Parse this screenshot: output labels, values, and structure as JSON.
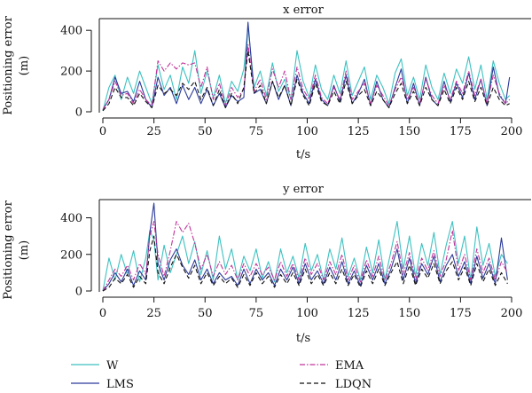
{
  "figure": {
    "ylabel_line1": "Positioning error",
    "ylabel_line2": "(m)"
  },
  "colors": {
    "W": "#3ec1c1",
    "LMS": "#2b3a9a",
    "EMA": "#c0349a",
    "LDQN": "#111111"
  },
  "chart_data": [
    {
      "type": "line",
      "title": "x error",
      "xlabel": "t/s",
      "ylabel": "Positioning error (m)",
      "xlim": [
        0,
        200
      ],
      "ylim": [
        0,
        440
      ],
      "x_ticks": [
        0,
        25,
        50,
        75,
        100,
        125,
        150,
        175,
        200
      ],
      "y_ticks": [
        0,
        200,
        400
      ],
      "x": [
        0,
        3,
        6,
        9,
        12,
        15,
        18,
        21,
        24,
        27,
        30,
        33,
        36,
        39,
        42,
        45,
        48,
        51,
        54,
        57,
        60,
        63,
        66,
        69,
        71,
        74,
        77,
        80,
        83,
        86,
        89,
        92,
        95,
        98,
        101,
        104,
        107,
        110,
        113,
        116,
        119,
        122,
        125,
        128,
        131,
        134,
        137,
        140,
        143,
        146,
        149,
        152,
        155,
        158,
        161,
        164,
        167,
        170,
        173,
        176,
        179,
        182,
        185,
        188,
        191,
        194,
        197,
        199
      ],
      "series": [
        {
          "name": "W",
          "values": [
            5,
            120,
            180,
            60,
            170,
            90,
            200,
            120,
            40,
            230,
            110,
            180,
            60,
            220,
            140,
            300,
            90,
            200,
            70,
            180,
            40,
            150,
            100,
            210,
            420,
            120,
            200,
            80,
            240,
            100,
            160,
            60,
            300,
            150,
            70,
            230,
            110,
            60,
            180,
            90,
            250,
            80,
            150,
            220,
            60,
            180,
            120,
            40,
            190,
            260,
            80,
            170,
            60,
            230,
            120,
            60,
            190,
            90,
            210,
            140,
            270,
            110,
            230,
            60,
            250,
            140,
            60,
            80
          ]
        },
        {
          "name": "LMS",
          "values": [
            10,
            60,
            170,
            90,
            100,
            50,
            150,
            60,
            20,
            170,
            80,
            120,
            40,
            130,
            60,
            120,
            40,
            110,
            30,
            90,
            20,
            80,
            50,
            70,
            440,
            90,
            110,
            40,
            150,
            60,
            130,
            30,
            180,
            90,
            40,
            160,
            60,
            30,
            130,
            50,
            180,
            40,
            90,
            160,
            30,
            150,
            60,
            20,
            120,
            210,
            40,
            140,
            30,
            170,
            60,
            30,
            150,
            50,
            140,
            70,
            190,
            60,
            160,
            30,
            220,
            80,
            40,
            170
          ]
        },
        {
          "name": "EMA",
          "values": [
            10,
            60,
            150,
            80,
            90,
            40,
            110,
            60,
            30,
            250,
            200,
            240,
            210,
            240,
            230,
            240,
            120,
            220,
            60,
            140,
            30,
            120,
            70,
            110,
            330,
            100,
            160,
            60,
            210,
            120,
            200,
            60,
            220,
            110,
            60,
            180,
            70,
            40,
            120,
            60,
            200,
            60,
            100,
            140,
            40,
            130,
            80,
            30,
            110,
            170,
            60,
            120,
            40,
            160,
            80,
            40,
            130,
            60,
            150,
            90,
            200,
            80,
            160,
            40,
            180,
            90,
            40,
            60
          ]
        },
        {
          "name": "LDQN",
          "values": [
            5,
            40,
            120,
            70,
            70,
            30,
            90,
            50,
            20,
            130,
            90,
            110,
            80,
            140,
            110,
            150,
            60,
            120,
            30,
            110,
            20,
            90,
            40,
            120,
            300,
            90,
            130,
            40,
            150,
            70,
            130,
            30,
            160,
            80,
            30,
            140,
            50,
            30,
            100,
            40,
            150,
            40,
            80,
            110,
            30,
            100,
            60,
            20,
            90,
            140,
            40,
            100,
            30,
            120,
            60,
            30,
            110,
            40,
            120,
            60,
            150,
            50,
            120,
            30,
            120,
            60,
            30,
            40
          ]
        }
      ],
      "legend_position": "bottom"
    },
    {
      "type": "line",
      "title": "y error",
      "xlabel": "t/s",
      "ylabel": "Positioning error (m)",
      "xlim": [
        0,
        200
      ],
      "ylim": [
        0,
        480
      ],
      "x_ticks": [
        0,
        25,
        50,
        75,
        100,
        125,
        150,
        175,
        200
      ],
      "y_ticks": [
        0,
        200,
        400
      ],
      "x": [
        0,
        3,
        6,
        9,
        12,
        15,
        18,
        21,
        23,
        25,
        27,
        30,
        33,
        36,
        39,
        42,
        45,
        48,
        51,
        54,
        57,
        60,
        63,
        66,
        69,
        72,
        75,
        78,
        81,
        84,
        87,
        90,
        93,
        96,
        99,
        102,
        105,
        108,
        111,
        114,
        117,
        120,
        123,
        126,
        129,
        132,
        135,
        138,
        141,
        144,
        147,
        150,
        153,
        156,
        159,
        162,
        165,
        168,
        171,
        174,
        177,
        180,
        183,
        186,
        189,
        192,
        195,
        198
      ],
      "series": [
        {
          "name": "W",
          "values": [
            0,
            180,
            60,
            200,
            90,
            220,
            50,
            180,
            330,
            280,
            60,
            250,
            100,
            200,
            300,
            150,
            270,
            90,
            220,
            60,
            300,
            120,
            230,
            60,
            190,
            110,
            230,
            70,
            160,
            50,
            230,
            100,
            190,
            70,
            260,
            110,
            200,
            60,
            230,
            120,
            290,
            80,
            180,
            60,
            240,
            100,
            280,
            60,
            220,
            380,
            120,
            300,
            80,
            260,
            140,
            320,
            90,
            250,
            380,
            150,
            300,
            60,
            350,
            140,
            260,
            80,
            200,
            150
          ]
        },
        {
          "name": "LMS",
          "values": [
            0,
            40,
            100,
            50,
            120,
            30,
            110,
            60,
            320,
            480,
            150,
            60,
            170,
            230,
            140,
            90,
            170,
            60,
            120,
            40,
            100,
            60,
            80,
            30,
            120,
            40,
            120,
            60,
            100,
            30,
            120,
            60,
            130,
            40,
            150,
            60,
            110,
            40,
            130,
            60,
            160,
            40,
            110,
            30,
            140,
            60,
            150,
            40,
            120,
            230,
            60,
            180,
            40,
            150,
            90,
            190,
            50,
            140,
            200,
            80,
            160,
            40,
            190,
            70,
            150,
            40,
            290,
            60
          ]
        },
        {
          "name": "EMA",
          "values": [
            0,
            60,
            120,
            80,
            140,
            60,
            150,
            90,
            300,
            380,
            200,
            80,
            220,
            380,
            320,
            370,
            260,
            120,
            200,
            80,
            160,
            90,
            140,
            60,
            150,
            80,
            150,
            90,
            130,
            60,
            160,
            80,
            150,
            60,
            180,
            90,
            150,
            60,
            160,
            90,
            200,
            60,
            140,
            50,
            170,
            80,
            190,
            60,
            150,
            270,
            90,
            210,
            60,
            180,
            110,
            220,
            80,
            170,
            330,
            110,
            200,
            60,
            230,
            100,
            180,
            60,
            160,
            100
          ]
        },
        {
          "name": "LDQN",
          "values": [
            0,
            20,
            70,
            40,
            90,
            20,
            80,
            40,
            220,
            300,
            100,
            40,
            130,
            200,
            130,
            70,
            140,
            40,
            100,
            30,
            80,
            40,
            70,
            20,
            90,
            30,
            100,
            40,
            80,
            20,
            90,
            40,
            100,
            30,
            120,
            40,
            90,
            30,
            100,
            40,
            120,
            30,
            90,
            20,
            110,
            40,
            120,
            30,
            100,
            160,
            40,
            140,
            30,
            120,
            70,
            150,
            40,
            110,
            160,
            60,
            130,
            30,
            150,
            50,
            120,
            30,
            100,
            40
          ]
        }
      ],
      "legend_position": "bottom"
    }
  ]
}
